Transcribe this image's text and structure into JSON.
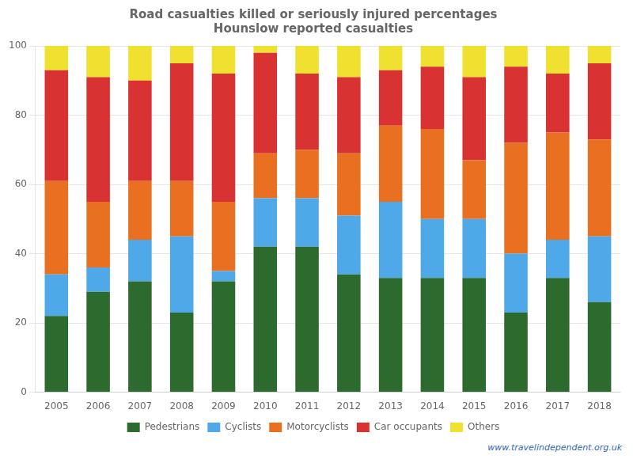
{
  "chart_data": {
    "type": "bar",
    "stacked": true,
    "title": "Road casualties killed or seriously injured percentages\nHounslow reported casualties",
    "categories": [
      "2005",
      "2006",
      "2007",
      "2008",
      "2009",
      "2010",
      "2011",
      "2012",
      "2013",
      "2014",
      "2015",
      "2016",
      "2017",
      "2018"
    ],
    "series": [
      {
        "name": "Pedestrians",
        "color": "#2d6a2d",
        "values": [
          22,
          29,
          32,
          23,
          32,
          42,
          42,
          34,
          33,
          33,
          33,
          23,
          33,
          26
        ]
      },
      {
        "name": "Cyclists",
        "color": "#4fa8e8",
        "values": [
          12,
          7,
          12,
          22,
          3,
          14,
          14,
          17,
          22,
          17,
          17,
          17,
          11,
          19
        ]
      },
      {
        "name": "Motorcyclists",
        "color": "#e87020",
        "values": [
          27,
          19,
          17,
          16,
          20,
          13,
          14,
          18,
          22,
          26,
          17,
          32,
          31,
          28
        ]
      },
      {
        "name": "Car occupants",
        "color": "#d93232",
        "values": [
          32,
          36,
          29,
          34,
          37,
          29,
          22,
          22,
          16,
          18,
          24,
          22,
          17,
          22
        ]
      },
      {
        "name": "Others",
        "color": "#f0e030",
        "values": [
          7,
          9,
          10,
          5,
          8,
          2,
          8,
          9,
          7,
          6,
          9,
          6,
          8,
          5
        ]
      }
    ],
    "ylim": [
      0,
      100
    ],
    "yticks": [
      0,
      20,
      40,
      60,
      80,
      100
    ],
    "grid": true,
    "legend": "bottom",
    "annotations": [
      "www.travelindependent.org.uk"
    ]
  }
}
